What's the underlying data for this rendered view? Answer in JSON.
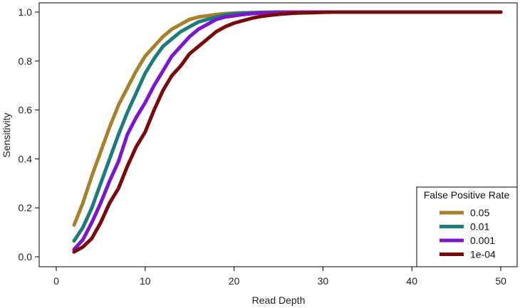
{
  "chart_data": {
    "type": "line",
    "title": "",
    "xlabel": "Read Depth",
    "ylabel": "Sensitivity",
    "xlim": [
      0,
      50
    ],
    "ylim": [
      0,
      1
    ],
    "xticks": [
      0,
      10,
      20,
      30,
      40,
      50
    ],
    "yticks": [
      0.0,
      0.2,
      0.4,
      0.6,
      0.8,
      1.0
    ],
    "xtick_labels": [
      "0",
      "10",
      "20",
      "30",
      "40",
      "50"
    ],
    "ytick_labels": [
      "0.0",
      "0.2",
      "0.4",
      "0.6",
      "0.8",
      "1.0"
    ],
    "grid": false,
    "legend": {
      "title": "False Positive Rate",
      "placement": "bottom-right"
    },
    "x": [
      2,
      3,
      4,
      5,
      6,
      7,
      8,
      9,
      10,
      11,
      12,
      13,
      14,
      15,
      16,
      17,
      18,
      19,
      20,
      21,
      22,
      23,
      24,
      25,
      26,
      27,
      28,
      29,
      30,
      31,
      32,
      33,
      34,
      35,
      36,
      37,
      38,
      39,
      40,
      41,
      42,
      43,
      44,
      45,
      46,
      47,
      48,
      49,
      50
    ],
    "series": [
      {
        "name": "0.05",
        "color": "#A8802A",
        "values": [
          0.13,
          0.22,
          0.33,
          0.43,
          0.53,
          0.62,
          0.69,
          0.76,
          0.82,
          0.86,
          0.9,
          0.93,
          0.95,
          0.97,
          0.98,
          0.985,
          0.99,
          0.994,
          0.996,
          0.997,
          0.998,
          0.999,
          0.999,
          1,
          1,
          1,
          1,
          1,
          1,
          1,
          1,
          1,
          1,
          1,
          1,
          1,
          1,
          1,
          1,
          1,
          1,
          1,
          1,
          1,
          1,
          1,
          1,
          1,
          1
        ]
      },
      {
        "name": "0.01",
        "color": "#1E7B7B",
        "values": [
          0.065,
          0.12,
          0.2,
          0.3,
          0.4,
          0.5,
          0.59,
          0.67,
          0.75,
          0.81,
          0.86,
          0.89,
          0.92,
          0.94,
          0.96,
          0.97,
          0.98,
          0.988,
          0.993,
          0.996,
          0.997,
          0.998,
          0.999,
          1,
          1,
          1,
          1,
          1,
          1,
          1,
          1,
          1,
          1,
          1,
          1,
          1,
          1,
          1,
          1,
          1,
          1,
          1,
          1,
          1,
          1,
          1,
          1,
          1,
          1
        ]
      },
      {
        "name": "0.001",
        "color": "#7B16CC",
        "values": [
          0.03,
          0.07,
          0.14,
          0.22,
          0.31,
          0.39,
          0.5,
          0.57,
          0.63,
          0.7,
          0.76,
          0.82,
          0.86,
          0.9,
          0.93,
          0.95,
          0.97,
          0.98,
          0.985,
          0.99,
          0.994,
          0.996,
          0.998,
          0.999,
          1,
          1,
          1,
          1,
          1,
          1,
          1,
          1,
          1,
          1,
          1,
          1,
          1,
          1,
          1,
          1,
          1,
          1,
          1,
          1,
          1,
          1,
          1,
          1,
          1
        ]
      },
      {
        "name": "1e-04",
        "color": "#7A0A0A",
        "values": [
          0.02,
          0.04,
          0.075,
          0.14,
          0.22,
          0.28,
          0.37,
          0.45,
          0.51,
          0.6,
          0.68,
          0.74,
          0.78,
          0.83,
          0.86,
          0.89,
          0.92,
          0.94,
          0.955,
          0.965,
          0.975,
          0.982,
          0.987,
          0.991,
          0.994,
          0.996,
          0.997,
          0.998,
          0.999,
          1,
          1,
          1,
          1,
          1,
          1,
          1,
          1,
          1,
          1,
          1,
          1,
          1,
          1,
          1,
          1,
          1,
          1,
          1,
          1
        ]
      }
    ]
  }
}
